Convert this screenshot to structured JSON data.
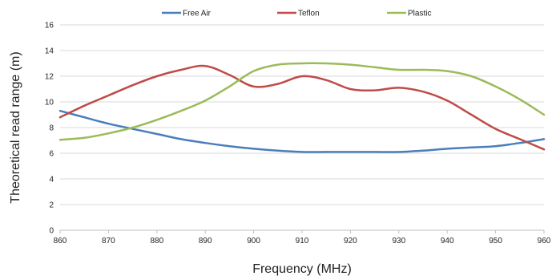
{
  "chart_data": {
    "type": "line",
    "title": "",
    "xlabel": "Frequency (MHz)",
    "ylabel": "Theoretical read range (m)",
    "xlim": [
      860,
      960
    ],
    "ylim": [
      0,
      16
    ],
    "x_ticks": [
      860,
      870,
      880,
      890,
      900,
      910,
      920,
      930,
      940,
      950,
      960
    ],
    "y_ticks": [
      0,
      2,
      4,
      6,
      8,
      10,
      12,
      14,
      16
    ],
    "grid": true,
    "legend_position": "top",
    "series": [
      {
        "name": "Free Air",
        "color": "#4a7ebb",
        "x": [
          860,
          865,
          870,
          875,
          880,
          885,
          890,
          895,
          900,
          905,
          910,
          915,
          920,
          925,
          930,
          935,
          940,
          945,
          950,
          955,
          960
        ],
        "values": [
          9.3,
          8.8,
          8.3,
          7.9,
          7.5,
          7.1,
          6.8,
          6.55,
          6.35,
          6.2,
          6.1,
          6.1,
          6.1,
          6.1,
          6.1,
          6.2,
          6.35,
          6.45,
          6.55,
          6.8,
          7.1
        ]
      },
      {
        "name": "Teflon",
        "color": "#be4b48",
        "x": [
          860,
          865,
          870,
          875,
          880,
          885,
          890,
          895,
          900,
          905,
          910,
          915,
          920,
          925,
          930,
          935,
          940,
          945,
          950,
          955,
          960
        ],
        "values": [
          8.8,
          9.7,
          10.5,
          11.3,
          12.0,
          12.5,
          12.8,
          12.1,
          11.2,
          11.4,
          12.0,
          11.7,
          11.0,
          10.9,
          11.1,
          10.8,
          10.1,
          9.0,
          7.9,
          7.1,
          6.3
        ]
      },
      {
        "name": "Plastic",
        "color": "#9bbb59",
        "x": [
          860,
          865,
          870,
          875,
          880,
          885,
          890,
          895,
          900,
          905,
          910,
          915,
          920,
          925,
          930,
          935,
          940,
          945,
          950,
          955,
          960
        ],
        "values": [
          7.05,
          7.2,
          7.55,
          8.0,
          8.6,
          9.3,
          10.1,
          11.2,
          12.4,
          12.9,
          13.0,
          13.0,
          12.9,
          12.7,
          12.5,
          12.5,
          12.4,
          12.0,
          11.2,
          10.2,
          9.0
        ]
      }
    ]
  }
}
